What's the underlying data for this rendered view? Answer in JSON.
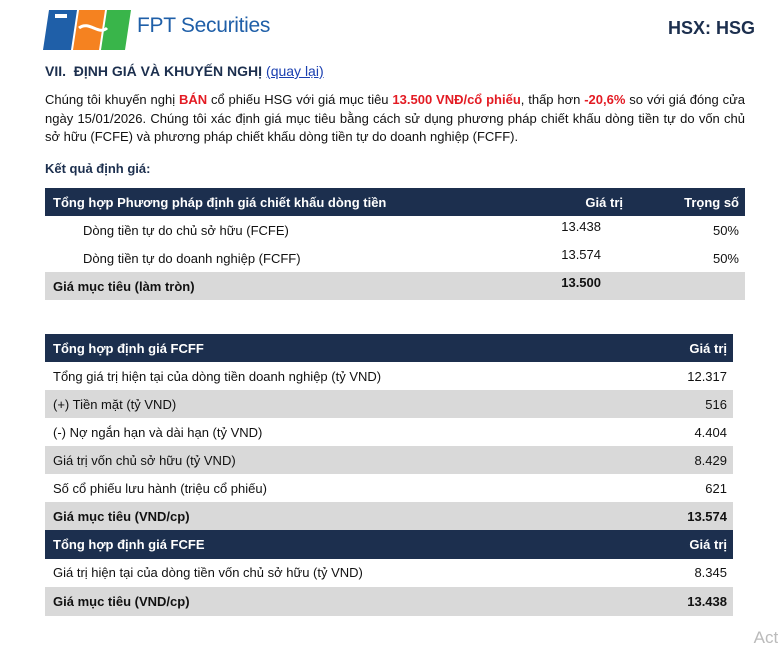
{
  "header": {
    "logo_text": "FPT Securities",
    "ticker": "HSX: HSG"
  },
  "section": {
    "title": "VII.  ĐỊNH GIÁ VÀ KHUYẾN NGHỊ",
    "link": "(quay lại)"
  },
  "intro": {
    "parts": [
      "Chúng tôi khuyến nghị ",
      "BÁN",
      " cổ phiếu HSG với giá mục tiêu ",
      "13.500 VNĐ/cổ phiếu",
      ", thấp hơn ",
      "-20,6%",
      " so với giá đóng cửa ngày 15/01/2026. Chúng tôi xác định giá mục tiêu bằng cách sử dụng phương pháp chiết khấu dòng tiền tự do vốn chủ sở hữu (FCFE) và phương pháp chiết khấu dòng tiền tự do doanh nghiệp (FCFF)."
    ]
  },
  "results_label": "Kết quả định giá:",
  "tables": [
    {
      "header": [
        "Tổng hợp Phương pháp định giá chiết khấu dòng tiền",
        "Giá trị",
        "Trọng số"
      ],
      "rows": [
        [
          "Dòng tiền tự do chủ sở hữu (FCFE)",
          "13.438",
          "50%"
        ],
        [
          "Dòng tiền tự do doanh nghiệp (FCFF)",
          "13.574",
          "50%"
        ],
        [
          "Giá mục tiêu (làm tròn)",
          "13.500"
        ]
      ]
    },
    {
      "header": [
        "Tổng hợp định giá FCFF",
        "Giá trị"
      ],
      "rows": [
        [
          "Tổng giá trị hiện tại của dòng tiền doanh nghiệp (tỷ VND)",
          "12.317"
        ],
        [
          "(+) Tiền mặt (tỷ VND)",
          "516"
        ],
        [
          "(-) Nợ ngắn hạn và dài hạn (tỷ VND)",
          "4.404"
        ],
        [
          "Giá trị vốn chủ sở hữu (tỷ VND)",
          "8.429"
        ],
        [
          "Số cổ phiếu lưu hành (triệu cổ phiếu)",
          "621"
        ],
        [
          "Giá mục tiêu (VND/cp)",
          "13.574"
        ]
      ]
    },
    {
      "header": [
        "Tổng hợp định giá FCFE",
        "Giá trị"
      ],
      "rows": [
        [
          "Giá trị hiện tại của dòng tiền vốn chủ sở hữu (tỷ VND)",
          "8.345"
        ],
        [
          "Giá mục tiêu (VND/cp)",
          "13.438"
        ]
      ]
    }
  ],
  "watermark": "Acti"
}
